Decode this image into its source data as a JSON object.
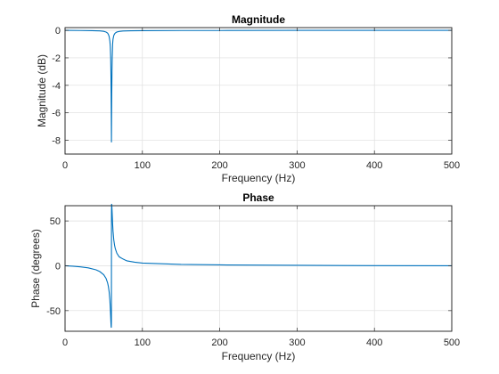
{
  "chart_data": [
    {
      "type": "line",
      "title": "Magnitude",
      "xlabel": "Frequency (Hz)",
      "ylabel": "Magnitude (dB)",
      "xlim": [
        0,
        500
      ],
      "ylim": [
        -9,
        0.2
      ],
      "xticks": [
        0,
        100,
        200,
        300,
        400,
        500
      ],
      "xtick_labels": [
        "0",
        "100",
        "200",
        "300",
        "400",
        "500"
      ],
      "yticks": [
        0,
        -2,
        -4,
        -6,
        -8
      ],
      "ytick_labels": [
        "0",
        "-2",
        "-4",
        "-6",
        "-8"
      ],
      "grid": true,
      "series": [
        {
          "color": "#0072bd",
          "x": [
            0,
            20,
            35,
            45,
            50,
            53,
            55,
            56,
            57,
            58,
            58.5,
            59,
            59.3,
            59.6,
            59.8,
            60,
            60.2,
            60.4,
            60.7,
            61,
            61.5,
            62,
            63,
            64,
            65,
            67,
            70,
            75,
            85,
            100,
            150,
            200,
            300,
            400,
            500
          ],
          "y": [
            0,
            -0.01,
            -0.02,
            -0.04,
            -0.07,
            -0.12,
            -0.2,
            -0.29,
            -0.45,
            -0.8,
            -1.2,
            -2.0,
            -3.0,
            -4.6,
            -6.3,
            -8.15,
            -6.3,
            -4.6,
            -3.0,
            -2.0,
            -1.0,
            -0.65,
            -0.38,
            -0.26,
            -0.19,
            -0.12,
            -0.08,
            -0.05,
            -0.03,
            -0.02,
            -0.01,
            -0.01,
            0,
            0,
            0
          ]
        }
      ]
    },
    {
      "type": "line",
      "title": "Phase",
      "xlabel": "Frequency (Hz)",
      "ylabel": "Phase (degrees)",
      "xlim": [
        0,
        500
      ],
      "ylim": [
        -73,
        67
      ],
      "xticks": [
        0,
        100,
        200,
        300,
        400,
        500
      ],
      "xtick_labels": [
        "0",
        "100",
        "200",
        "300",
        "400",
        "500"
      ],
      "yticks": [
        50,
        0,
        -50
      ],
      "ytick_labels": [
        "50",
        "0",
        "-50"
      ],
      "grid": true,
      "series": [
        {
          "color": "#0072bd",
          "x": [
            0,
            10,
            20,
            30,
            40,
            45,
            50,
            53,
            55,
            56,
            57,
            58,
            58.5,
            59,
            59.3,
            59.6,
            59.8,
            59.95,
            60,
            60.05,
            60.2,
            60.4,
            60.7,
            61,
            61.5,
            62,
            63,
            64,
            65,
            67,
            70,
            75,
            80,
            90,
            100,
            150,
            200,
            300,
            400,
            500
          ],
          "y": [
            0,
            -0.5,
            -1.2,
            -2.3,
            -4.5,
            -6.5,
            -10,
            -14,
            -19,
            -23,
            -29,
            -39,
            -47,
            -57,
            -63,
            -68,
            -69,
            -60,
            0,
            60,
            69,
            68,
            63,
            57,
            47,
            39,
            29,
            23,
            19,
            14,
            10,
            7.5,
            5.5,
            4,
            3,
            1.5,
            1,
            0.5,
            0.2,
            0
          ]
        }
      ]
    }
  ]
}
